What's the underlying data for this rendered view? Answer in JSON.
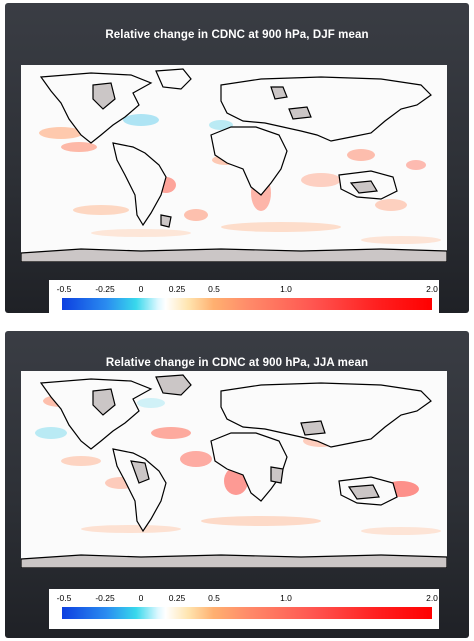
{
  "panels": [
    {
      "id": "djf",
      "title": "Relative change in CDNC at 900 hPa, DJF mean",
      "colorbar_ticks": [
        "-0.5",
        "-0.25",
        "0",
        "0.25",
        "0.5",
        "1.0",
        "2.0"
      ]
    },
    {
      "id": "jja",
      "title": "Relative change in CDNC at 900 hPa, JJA mean",
      "colorbar_ticks": [
        "-0.5",
        "-0.25",
        "0",
        "0.25",
        "0.5",
        "1.0",
        "2.0"
      ]
    }
  ],
  "colors": {
    "panel_background": "#2d3036",
    "no_data": "#cbc6c6",
    "negative_strong": "#0d3fe0",
    "negative_weak": "#38d8ec",
    "zero": "#ffffff",
    "positive_weak": "#ffb070",
    "positive_strong": "#ff0000",
    "coastline": "#000000"
  }
}
